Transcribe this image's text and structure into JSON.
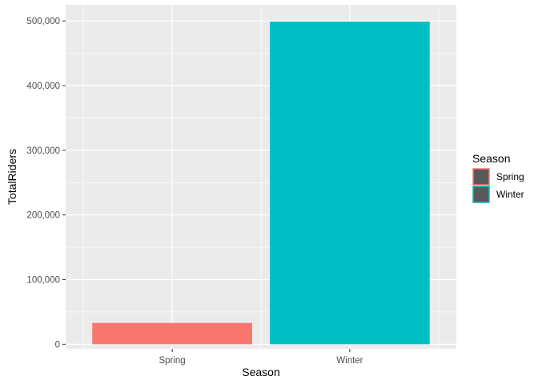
{
  "chart_data": {
    "type": "bar",
    "categories": [
      "Spring",
      "Winter"
    ],
    "values": [
      33000,
      499000
    ],
    "colors": [
      "#F8766D",
      "#00BFC4"
    ],
    "xlabel": "Season",
    "ylabel": "TotalRiders",
    "ylim": [
      -7000,
      525000
    ],
    "yticks": [
      0,
      100000,
      200000,
      300000,
      400000,
      500000
    ],
    "ytick_labels": [
      "0",
      "100,000",
      "200,000",
      "300,000",
      "400,000",
      "500,000"
    ],
    "grid": true,
    "background": "#EBEBEB",
    "legend": {
      "title": "Season",
      "placement": "right",
      "entries": [
        "Spring",
        "Winter"
      ],
      "key_fill": "#595959"
    }
  }
}
